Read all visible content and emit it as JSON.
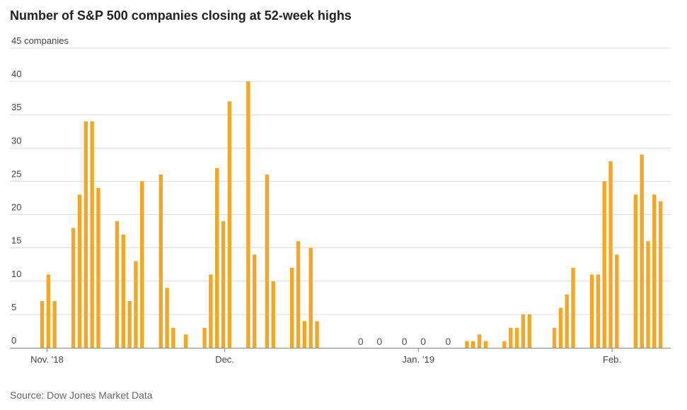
{
  "title": "Number of S&P 500 companies closing at 52-week highs",
  "source": "Source: Dow Jones Market Data",
  "colors": {
    "bar": "#f5a623",
    "grid": "#dddddd",
    "axis": "#888888"
  },
  "chart_data": {
    "type": "bar",
    "title": "Number of S&P 500 companies closing at 52-week highs",
    "xlabel": "",
    "ylabel": "companies",
    "ylim": [
      0,
      45
    ],
    "yticks": [
      {
        "value": 0,
        "label": "0"
      },
      {
        "value": 5,
        "label": "5"
      },
      {
        "value": 10,
        "label": "10"
      },
      {
        "value": 15,
        "label": "15"
      },
      {
        "value": 20,
        "label": "20"
      },
      {
        "value": 25,
        "label": "25"
      },
      {
        "value": 30,
        "label": "30"
      },
      {
        "value": 35,
        "label": "35"
      },
      {
        "value": 40,
        "label": "40"
      },
      {
        "value": 45,
        "label": "45 companies"
      }
    ],
    "month_ticks": [
      {
        "label": "Nov. ’18",
        "day": 0
      },
      {
        "label": "Dec.",
        "day": 29
      },
      {
        "label": "Jan. ’19",
        "day": 60
      },
      {
        "label": "Feb.",
        "day": 91
      }
    ],
    "zero_label": "0",
    "bars": [
      {
        "day": 0,
        "value": 7
      },
      {
        "day": 1,
        "value": 11
      },
      {
        "day": 2,
        "value": 7
      },
      {
        "day": 5,
        "value": 18
      },
      {
        "day": 6,
        "value": 23
      },
      {
        "day": 7,
        "value": 34
      },
      {
        "day": 8,
        "value": 34
      },
      {
        "day": 9,
        "value": 24
      },
      {
        "day": 12,
        "value": 19
      },
      {
        "day": 13,
        "value": 17
      },
      {
        "day": 14,
        "value": 7
      },
      {
        "day": 15,
        "value": 13
      },
      {
        "day": 16,
        "value": 25
      },
      {
        "day": 19,
        "value": 26
      },
      {
        "day": 20,
        "value": 9
      },
      {
        "day": 21,
        "value": 3
      },
      {
        "day": 23,
        "value": 2
      },
      {
        "day": 26,
        "value": 3
      },
      {
        "day": 27,
        "value": 11
      },
      {
        "day": 28,
        "value": 27
      },
      {
        "day": 29,
        "value": 19
      },
      {
        "day": 30,
        "value": 37
      },
      {
        "day": 33,
        "value": 40
      },
      {
        "day": 34,
        "value": 14
      },
      {
        "day": 36,
        "value": 26
      },
      {
        "day": 37,
        "value": 10
      },
      {
        "day": 40,
        "value": 12
      },
      {
        "day": 41,
        "value": 16
      },
      {
        "day": 42,
        "value": 4
      },
      {
        "day": 43,
        "value": 15
      },
      {
        "day": 44,
        "value": 4
      },
      {
        "day": 51,
        "value": 0
      },
      {
        "day": 54,
        "value": 0
      },
      {
        "day": 58,
        "value": 0
      },
      {
        "day": 61,
        "value": 0
      },
      {
        "day": 65,
        "value": 0
      },
      {
        "day": 68,
        "value": 1
      },
      {
        "day": 69,
        "value": 1
      },
      {
        "day": 70,
        "value": 2
      },
      {
        "day": 71,
        "value": 1
      },
      {
        "day": 74,
        "value": 1
      },
      {
        "day": 75,
        "value": 3
      },
      {
        "day": 76,
        "value": 3
      },
      {
        "day": 77,
        "value": 5
      },
      {
        "day": 78,
        "value": 5
      },
      {
        "day": 82,
        "value": 3
      },
      {
        "day": 83,
        "value": 6
      },
      {
        "day": 84,
        "value": 8
      },
      {
        "day": 85,
        "value": 12
      },
      {
        "day": 88,
        "value": 11
      },
      {
        "day": 89,
        "value": 11
      },
      {
        "day": 90,
        "value": 25
      },
      {
        "day": 91,
        "value": 28
      },
      {
        "day": 92,
        "value": 14
      },
      {
        "day": 95,
        "value": 23
      },
      {
        "day": 96,
        "value": 29
      },
      {
        "day": 97,
        "value": 16
      },
      {
        "day": 98,
        "value": 23
      },
      {
        "day": 99,
        "value": 22
      }
    ]
  }
}
